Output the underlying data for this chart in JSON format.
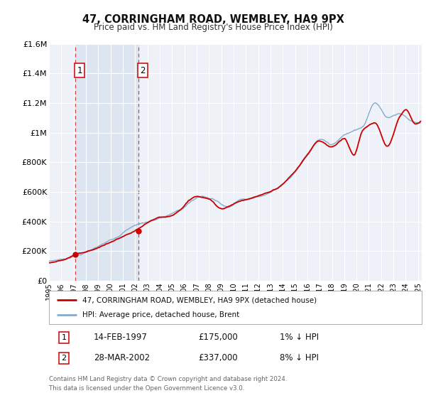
{
  "title": "47, CORRINGHAM ROAD, WEMBLEY, HA9 9PX",
  "subtitle": "Price paid vs. HM Land Registry's House Price Index (HPI)",
  "legend_label_red": "47, CORRINGHAM ROAD, WEMBLEY, HA9 9PX (detached house)",
  "legend_label_blue": "HPI: Average price, detached house, Brent",
  "transaction1_date": "14-FEB-1997",
  "transaction1_price": "£175,000",
  "transaction1_hpi": "1% ↓ HPI",
  "transaction2_date": "28-MAR-2002",
  "transaction2_price": "£337,000",
  "transaction2_hpi": "8% ↓ HPI",
  "footer_line1": "Contains HM Land Registry data © Crown copyright and database right 2024.",
  "footer_line2": "This data is licensed under the Open Government Licence v3.0.",
  "xmin": 1995.0,
  "xmax": 2025.3,
  "ymin": 0,
  "ymax": 1600000,
  "yticks": [
    0,
    200000,
    400000,
    600000,
    800000,
    1000000,
    1200000,
    1400000,
    1600000
  ],
  "ytick_labels": [
    "£0",
    "£200K",
    "£400K",
    "£600K",
    "£800K",
    "£1M",
    "£1.2M",
    "£1.4M",
    "£1.6M"
  ],
  "xticks": [
    1995,
    1996,
    1997,
    1998,
    1999,
    2000,
    2001,
    2002,
    2003,
    2004,
    2005,
    2006,
    2007,
    2008,
    2009,
    2010,
    2011,
    2012,
    2013,
    2014,
    2015,
    2016,
    2017,
    2018,
    2019,
    2020,
    2021,
    2022,
    2023,
    2024,
    2025
  ],
  "background_color": "#ffffff",
  "plot_bg_color": "#eef2f8",
  "grid_color": "#ffffff",
  "red_color": "#cc0000",
  "blue_color": "#88aacc",
  "shade_color": "#dde6f0",
  "marker1_x": 1997.12,
  "marker1_y": 175000,
  "marker2_x": 2002.25,
  "marker2_y": 337000,
  "vline1_x": 1997.12,
  "vline2_x": 2002.25,
  "shade_xmin": 1997.12,
  "shade_xmax": 2002.25
}
